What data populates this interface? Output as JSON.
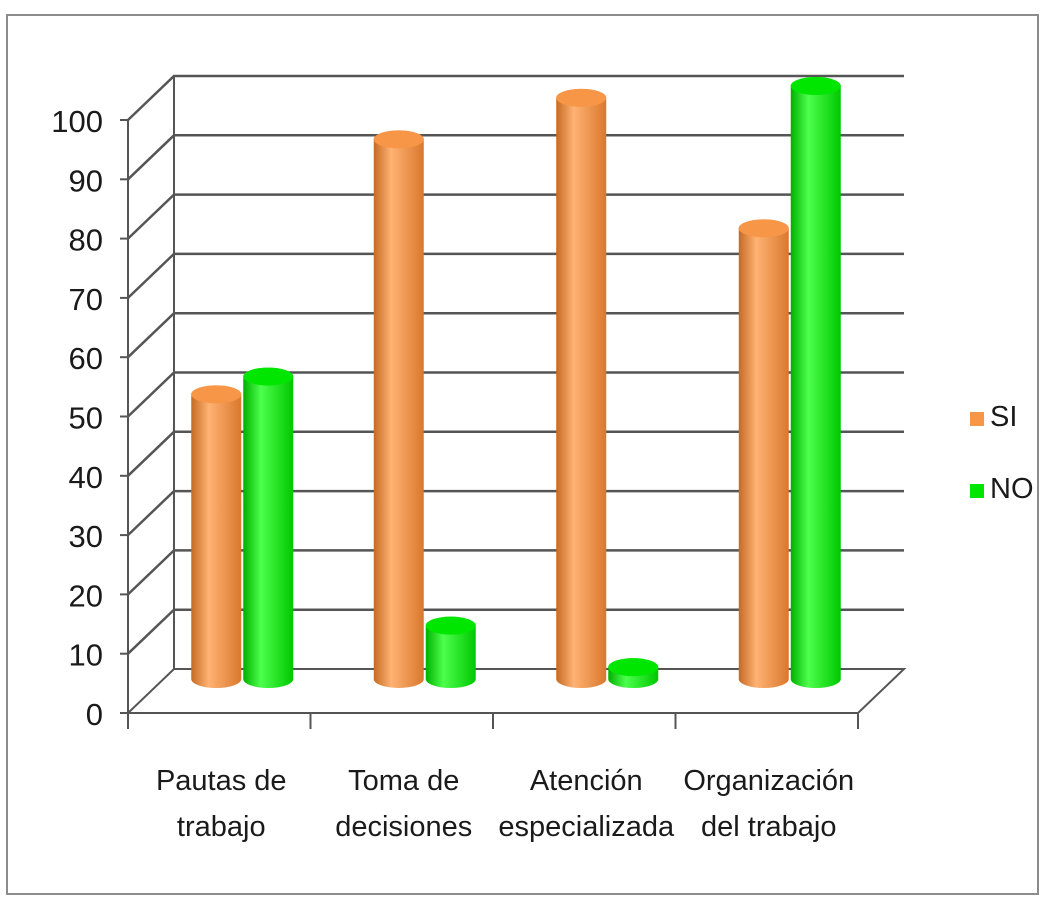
{
  "chart_data": {
    "type": "bar",
    "categories": [
      [
        "Pautas de",
        "trabajo"
      ],
      [
        "Toma de",
        "decisiones"
      ],
      [
        "Atención",
        "especializada"
      ],
      [
        "Organización",
        "del trabajo"
      ]
    ],
    "series": [
      {
        "name": "SI",
        "values": [
          48,
          91,
          98,
          76
        ],
        "color": "#f79646"
      },
      {
        "name": "NO",
        "values": [
          51,
          9,
          2,
          100
        ],
        "color": "#00e600"
      }
    ],
    "y_ticks": [
      "0",
      "10",
      "20",
      "30",
      "40",
      "50",
      "60",
      "70",
      "80",
      "90",
      "100"
    ],
    "ylim": [
      0,
      100
    ],
    "grid": true,
    "legend_position": "right",
    "title": "",
    "xlabel": "",
    "ylabel": ""
  }
}
